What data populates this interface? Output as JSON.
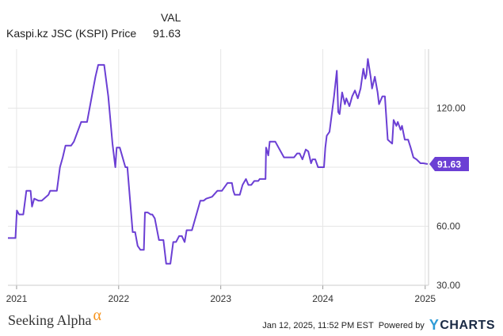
{
  "legend": {
    "column_header": "VAL",
    "series_name": "Kaspi.kz JSC (KSPI) Price",
    "series_value": "91.63"
  },
  "colors": {
    "series": "#6b3fd4",
    "grid": "#e6e6e6",
    "axis_text": "#333333",
    "brand_accent": "#f7941d",
    "ycharts_blue": "#2e9bd6"
  },
  "footer": {
    "brand_name": "Seeking Alpha",
    "brand_symbol": "α",
    "timestamp": "Jan 12, 2025, 11:52 PM EST",
    "powered_by": "Powered by",
    "ycharts_y": "Y",
    "ycharts_rest": "CHARTS"
  },
  "chart_data": {
    "type": "line",
    "title": "",
    "xlabel": "",
    "ylabel": "",
    "ylim": [
      30,
      150
    ],
    "y_ticks": [
      30,
      60,
      90,
      120
    ],
    "y_tick_labels": [
      "30.00",
      "60.00",
      "",
      "120.00"
    ],
    "x_range": [
      "2020-12-01",
      "2025-01-13"
    ],
    "x_ticks": [
      "2021-01-01",
      "2022-01-01",
      "2023-01-01",
      "2024-01-01",
      "2025-01-01"
    ],
    "x_tick_labels": [
      "2021",
      "2022",
      "2023",
      "2024",
      "2025"
    ],
    "grid": true,
    "last_value_label": "91.63",
    "series": [
      {
        "name": "Kaspi.kz JSC (KSPI) Price",
        "points": [
          [
            "2020-12-01",
            54
          ],
          [
            "2020-12-28",
            54
          ],
          [
            "2021-01-02",
            68
          ],
          [
            "2021-01-10",
            66
          ],
          [
            "2021-01-25",
            66
          ],
          [
            "2021-02-05",
            78
          ],
          [
            "2021-02-20",
            78
          ],
          [
            "2021-02-25",
            70
          ],
          [
            "2021-03-05",
            74
          ],
          [
            "2021-03-20",
            73
          ],
          [
            "2021-04-01",
            73
          ],
          [
            "2021-04-25",
            76
          ],
          [
            "2021-05-01",
            78
          ],
          [
            "2021-05-25",
            78
          ],
          [
            "2021-06-05",
            90
          ],
          [
            "2021-06-15",
            95
          ],
          [
            "2021-06-25",
            101
          ],
          [
            "2021-07-15",
            101
          ],
          [
            "2021-07-25",
            103
          ],
          [
            "2021-08-20",
            113
          ],
          [
            "2021-09-10",
            113
          ],
          [
            "2021-10-10",
            136
          ],
          [
            "2021-10-20",
            142
          ],
          [
            "2021-11-01",
            142
          ],
          [
            "2021-11-10",
            142
          ],
          [
            "2021-11-25",
            126
          ],
          [
            "2021-12-10",
            102
          ],
          [
            "2021-12-20",
            90
          ],
          [
            "2021-12-25",
            100
          ],
          [
            "2022-01-05",
            100
          ],
          [
            "2022-01-25",
            90
          ],
          [
            "2022-02-01",
            90
          ],
          [
            "2022-02-20",
            57
          ],
          [
            "2022-03-01",
            57
          ],
          [
            "2022-03-10",
            50
          ],
          [
            "2022-03-20",
            48
          ],
          [
            "2022-04-01",
            48
          ],
          [
            "2022-04-05",
            67
          ],
          [
            "2022-04-15",
            67
          ],
          [
            "2022-04-25",
            66
          ],
          [
            "2022-05-01",
            66
          ],
          [
            "2022-05-10",
            64
          ],
          [
            "2022-05-25",
            53
          ],
          [
            "2022-06-10",
            53
          ],
          [
            "2022-06-20",
            41
          ],
          [
            "2022-07-05",
            41
          ],
          [
            "2022-07-15",
            52
          ],
          [
            "2022-07-25",
            52
          ],
          [
            "2022-08-05",
            55
          ],
          [
            "2022-08-15",
            55
          ],
          [
            "2022-08-25",
            52
          ],
          [
            "2022-09-01",
            58
          ],
          [
            "2022-09-20",
            58
          ],
          [
            "2022-10-20",
            73
          ],
          [
            "2022-11-01",
            73
          ],
          [
            "2022-11-10",
            74
          ],
          [
            "2022-12-01",
            75
          ],
          [
            "2022-12-20",
            78
          ],
          [
            "2023-01-05",
            78
          ],
          [
            "2023-01-20",
            81
          ],
          [
            "2023-01-25",
            82
          ],
          [
            "2023-02-10",
            82
          ],
          [
            "2023-02-15",
            78
          ],
          [
            "2023-02-20",
            76
          ],
          [
            "2023-03-10",
            76
          ],
          [
            "2023-03-20",
            81
          ],
          [
            "2023-04-01",
            84
          ],
          [
            "2023-04-10",
            81
          ],
          [
            "2023-04-20",
            81
          ],
          [
            "2023-05-01",
            83
          ],
          [
            "2023-05-15",
            83
          ],
          [
            "2023-05-20",
            84
          ],
          [
            "2023-06-10",
            84
          ],
          [
            "2023-06-12",
            100
          ],
          [
            "2023-06-20",
            96
          ],
          [
            "2023-06-25",
            103
          ],
          [
            "2023-07-15",
            103
          ],
          [
            "2023-08-15",
            95
          ],
          [
            "2023-09-20",
            95
          ],
          [
            "2023-10-01",
            97
          ],
          [
            "2023-10-10",
            97
          ],
          [
            "2023-10-20",
            94
          ],
          [
            "2023-11-01",
            99
          ],
          [
            "2023-11-10",
            98
          ],
          [
            "2023-11-20",
            92
          ],
          [
            "2023-11-25",
            94
          ],
          [
            "2023-12-05",
            94
          ],
          [
            "2023-12-15",
            90
          ],
          [
            "2024-01-05",
            90
          ],
          [
            "2024-01-10",
            100
          ],
          [
            "2024-01-15",
            106
          ],
          [
            "2024-01-25",
            108
          ],
          [
            "2024-02-10",
            126
          ],
          [
            "2024-02-20",
            139
          ],
          [
            "2024-02-25",
            118
          ],
          [
            "2024-03-01",
            117
          ],
          [
            "2024-03-10",
            128
          ],
          [
            "2024-03-20",
            122
          ],
          [
            "2024-03-25",
            125
          ],
          [
            "2024-04-05",
            121
          ],
          [
            "2024-04-15",
            126
          ],
          [
            "2024-04-25",
            129
          ],
          [
            "2024-05-05",
            125
          ],
          [
            "2024-05-15",
            130
          ],
          [
            "2024-05-25",
            140
          ],
          [
            "2024-06-01",
            135
          ],
          [
            "2024-06-05",
            137
          ],
          [
            "2024-06-10",
            145
          ],
          [
            "2024-06-20",
            136
          ],
          [
            "2024-06-25",
            130
          ],
          [
            "2024-07-05",
            136
          ],
          [
            "2024-07-15",
            128
          ],
          [
            "2024-07-20",
            122
          ],
          [
            "2024-08-01",
            126
          ],
          [
            "2024-08-10",
            126
          ],
          [
            "2024-08-20",
            104
          ],
          [
            "2024-09-05",
            102
          ],
          [
            "2024-09-10",
            114
          ],
          [
            "2024-09-20",
            111
          ],
          [
            "2024-09-25",
            113
          ],
          [
            "2024-10-05",
            109
          ],
          [
            "2024-10-10",
            111
          ],
          [
            "2024-10-20",
            104
          ],
          [
            "2024-11-01",
            104
          ],
          [
            "2024-11-10",
            100
          ],
          [
            "2024-11-20",
            95
          ],
          [
            "2024-12-01",
            94
          ],
          [
            "2024-12-15",
            92
          ],
          [
            "2024-12-25",
            92
          ],
          [
            "2025-01-10",
            91.63
          ]
        ]
      }
    ]
  }
}
